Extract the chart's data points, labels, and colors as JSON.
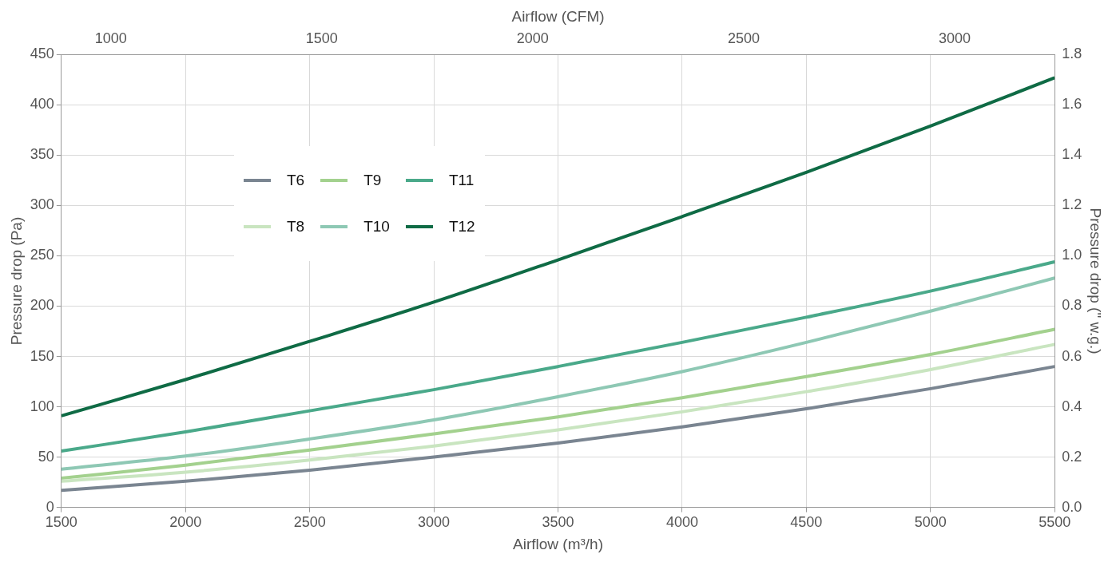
{
  "chart_data": {
    "type": "line",
    "xlabel": "Airflow (m³/h)",
    "ylabel": "Pressure drop (Pa)",
    "y2label": "Pressure drop (\" w.g.)",
    "x2label": "Airflow (CFM)",
    "x": [
      1500,
      2000,
      2500,
      3000,
      3500,
      4000,
      4500,
      5000,
      5500
    ],
    "series": [
      {
        "name": "T6",
        "color": "#7a8591",
        "values": [
          17,
          26,
          37,
          50,
          64,
          80,
          98,
          118,
          140
        ]
      },
      {
        "name": "T8",
        "color": "#c9e5c0",
        "values": [
          26,
          35,
          47,
          61,
          77,
          95,
          115,
          137,
          162
        ]
      },
      {
        "name": "T9",
        "color": "#a3d18e",
        "values": [
          29,
          42,
          57,
          73,
          90,
          109,
          130,
          152,
          177
        ]
      },
      {
        "name": "T10",
        "color": "#8ec8b4",
        "values": [
          38,
          51,
          68,
          87,
          110,
          135,
          164,
          195,
          228
        ]
      },
      {
        "name": "T11",
        "color": "#4aa98a",
        "values": [
          56,
          75,
          96,
          117,
          140,
          164,
          189,
          215,
          244
        ]
      },
      {
        "name": "T12",
        "color": "#0f6b45",
        "values": [
          91,
          127,
          165,
          204,
          246,
          289,
          333,
          379,
          427
        ]
      }
    ],
    "xlim": [
      1500,
      5500
    ],
    "xticks": [
      1500,
      2000,
      2500,
      3000,
      3500,
      4000,
      4500,
      5000,
      5500
    ],
    "ylim": [
      0,
      450
    ],
    "yticks": [
      0,
      50,
      100,
      150,
      200,
      250,
      300,
      350,
      400,
      450
    ],
    "y2lim": [
      0,
      1.8
    ],
    "y2ticks": [
      {
        "value": 0,
        "label": "0.0"
      },
      0.2,
      0.4,
      0.6,
      0.8,
      {
        "value": 1,
        "label": "1.0"
      },
      1.2,
      1.4,
      1.6,
      1.8
    ],
    "x2lim": [
      882.9,
      3237
    ],
    "x2ticks": [
      1000,
      1500,
      2000,
      2500,
      3000
    ],
    "grid": true,
    "legend": "top left",
    "marker": "none",
    "line_style": "solid"
  }
}
